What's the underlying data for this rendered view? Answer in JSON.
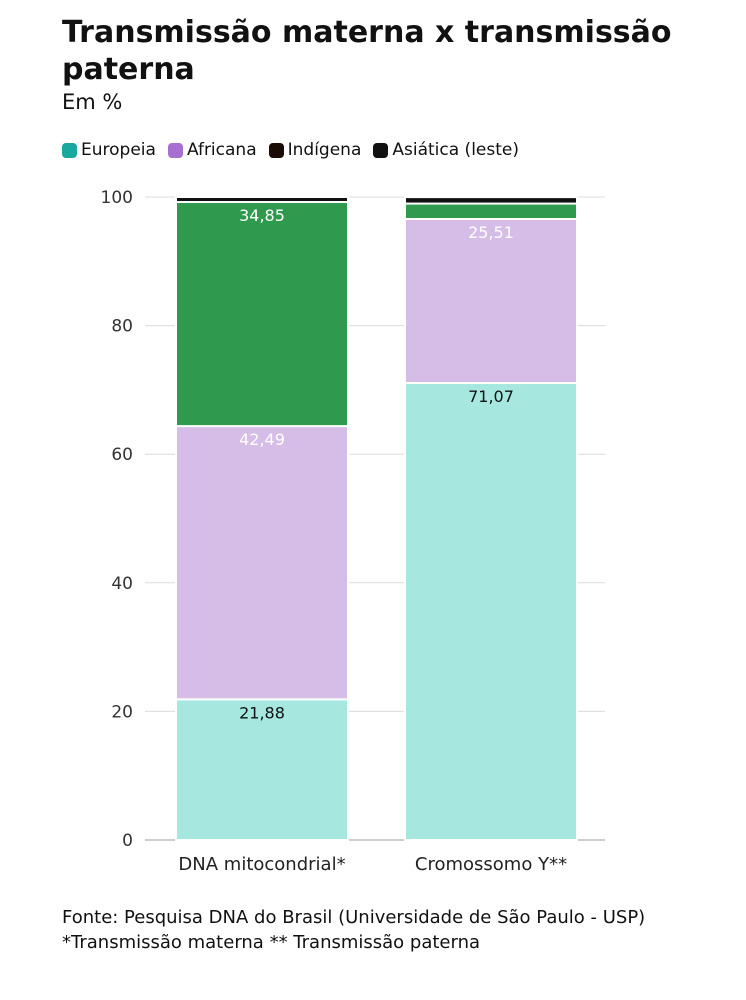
{
  "chart_data": {
    "type": "bar",
    "stacked": true,
    "title": "Transmissão materna x transmissão paterna",
    "subtitle": "Em %",
    "categories": [
      "DNA mitocondrial*",
      "Cromossomo Y**"
    ],
    "series": [
      {
        "name": "Europeia",
        "values": [
          21.88,
          71.07
        ],
        "labels": [
          "21,88",
          "71,07"
        ],
        "color": "#a6e8e0"
      },
      {
        "name": "Africana",
        "values": [
          42.49,
          25.51
        ],
        "labels": [
          "42,49",
          "25,51"
        ],
        "color": "#d6bde8"
      },
      {
        "name": "Indígena",
        "values": [
          34.85,
          2.4
        ],
        "labels": [
          "34,85",
          ""
        ],
        "color": "#2f9a4e"
      },
      {
        "name": "Asiática (leste)",
        "values": [
          0.78,
          1.0
        ],
        "labels": [
          "",
          ""
        ],
        "color": "#111111"
      }
    ],
    "legend_colors": [
      "#1aa79e",
      "#a86fd3",
      "#1a0b05",
      "#111111"
    ],
    "ylim": [
      0,
      100
    ],
    "yticks": [
      0,
      20,
      40,
      60,
      80,
      100
    ],
    "grid": true,
    "legend": "top-left"
  },
  "footer": {
    "source": "Fonte: Pesquisa DNA do Brasil (Universidade de São Paulo - USP)",
    "note": "*Transmissão materna ** Transmissão paterna"
  }
}
